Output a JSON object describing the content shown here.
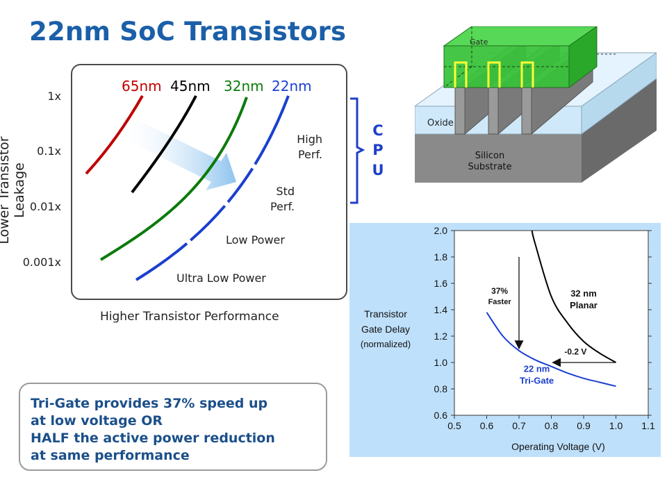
{
  "slide": {
    "title": "22nm SoC Transistors"
  },
  "left_chart": {
    "ylabel": "Lower Transistor Leakage",
    "xlabel": "Higher Transistor Performance",
    "yticks": [
      "1x",
      "0.1x",
      "0.01x",
      "0.001x"
    ],
    "nodes": [
      {
        "label": "65nm",
        "color": "#c00000"
      },
      {
        "label": "45nm",
        "color": "#000000"
      },
      {
        "label": "32nm",
        "color": "#0a7a0a"
      },
      {
        "label": "22nm",
        "color": "#1b3fcf"
      }
    ],
    "regions": {
      "high_perf": [
        "High",
        "Perf."
      ],
      "std_perf": [
        "Std",
        "Perf."
      ],
      "low_power": "Low Power",
      "ultra_low_power": "Ultra Low Power"
    },
    "cpu_letters": [
      "C",
      "P",
      "U"
    ],
    "cpu_color": "#1f3ec8",
    "arrow_color": "#8ec3ef"
  },
  "transistor_diagram": {
    "gate_label": "Gate",
    "oxide_label": "Oxide",
    "substrate_label": [
      "Silicon",
      "Substrate"
    ],
    "gate_color": "#33cc33",
    "oxide_color": "#cfe9fa",
    "substrate_color": "#7d7d7d"
  },
  "callout": {
    "lines": [
      "Tri-Gate provides 37% speed up",
      "at low voltage  OR",
      "HALF the active power reduction",
      "at same performance"
    ]
  },
  "chart_data": {
    "type": "line",
    "ylabel_lines": [
      "Transistor",
      "Gate Delay",
      "(normalized)"
    ],
    "xlabel": "Operating Voltage (V)",
    "xlim": [
      0.5,
      1.1
    ],
    "ylim": [
      0.6,
      2.0
    ],
    "xticks": [
      "0.5",
      "0.6",
      "0.7",
      "0.8",
      "0.9",
      "1.0",
      "1.1"
    ],
    "yticks": [
      "0.6",
      "0.8",
      "1.0",
      "1.2",
      "1.4",
      "1.6",
      "1.8",
      "2.0"
    ],
    "series": [
      {
        "name": "32 nm Planar",
        "label_lines": [
          "32 nm",
          "Planar"
        ],
        "color": "#000000",
        "x": [
          0.74,
          0.75,
          0.8,
          0.85,
          0.9,
          0.95,
          1.0
        ],
        "y": [
          2.0,
          1.9,
          1.5,
          1.3,
          1.16,
          1.07,
          1.0
        ]
      },
      {
        "name": "22 nm Tri-Gate",
        "label_lines": [
          "22 nm",
          "Tri-Gate"
        ],
        "color": "#1b3fcf",
        "x": [
          0.6,
          0.65,
          0.7,
          0.75,
          0.8,
          0.85,
          0.9,
          0.95,
          1.0
        ],
        "y": [
          1.38,
          1.2,
          1.09,
          1.02,
          0.97,
          0.92,
          0.88,
          0.85,
          0.82
        ]
      }
    ],
    "annotations": [
      {
        "text_lines": [
          "37%",
          "Faster"
        ],
        "arrow": "vertical at 0.7 V from 32 nm to 22 nm"
      },
      {
        "text": "-0.2 V",
        "arrow": "horizontal at 1.0 delay from 1.0 V to 0.8 V"
      }
    ],
    "grid": false
  }
}
